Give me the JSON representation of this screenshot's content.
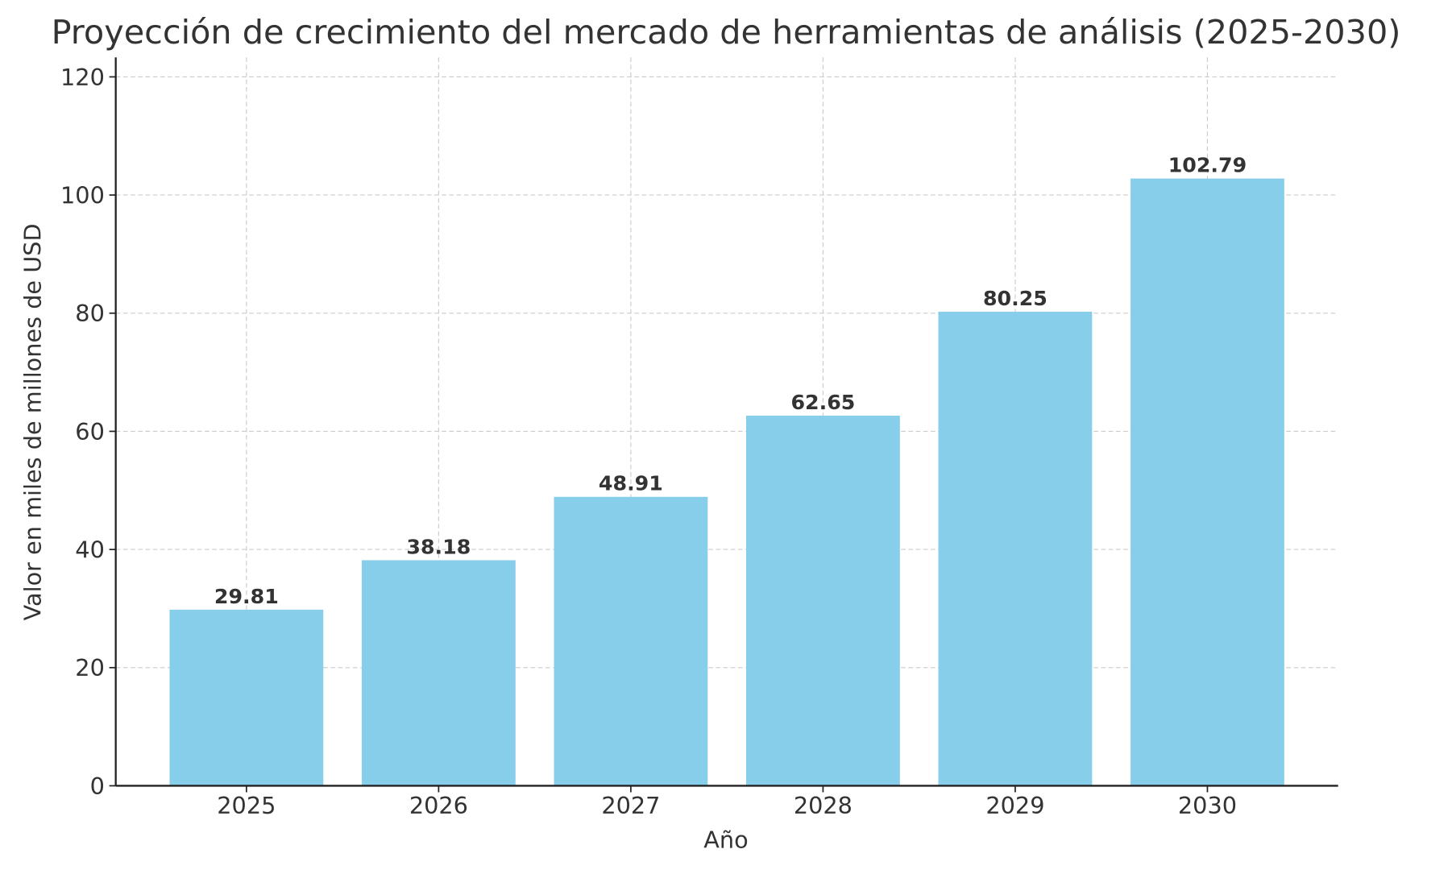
{
  "chart_data": {
    "type": "bar",
    "title": "Proyección de crecimiento del mercado de herramientas de análisis (2025-2030)",
    "xlabel": "Año",
    "ylabel": "Valor en miles de millones de USD",
    "categories": [
      "2025",
      "2026",
      "2027",
      "2028",
      "2029",
      "2030"
    ],
    "values": [
      29.81,
      38.18,
      48.91,
      62.65,
      80.25,
      102.79
    ],
    "data_labels": [
      "29.81",
      "38.18",
      "48.91",
      "62.65",
      "80.25",
      "102.79"
    ],
    "ylim": [
      0,
      123.3
    ],
    "yticks": [
      0,
      20,
      40,
      60,
      80,
      100,
      120
    ],
    "ytick_labels": [
      "0",
      "20",
      "40",
      "60",
      "80",
      "100",
      "120"
    ],
    "grid": true,
    "bar_color": "#87CEEB",
    "text_color": "#333333"
  }
}
